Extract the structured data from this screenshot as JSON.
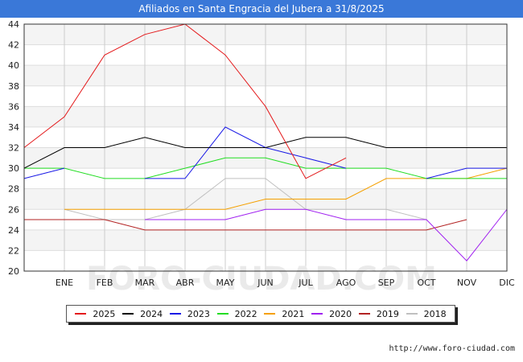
{
  "header": {
    "title": "Afiliados en Santa Engracia del Jubera a 31/8/2025"
  },
  "footer": {
    "source": "http://www.foro-ciudad.com"
  },
  "chart_data": {
    "type": "line",
    "title": "Afiliados en Santa Engracia del Jubera a 31/8/2025",
    "categories": [
      "",
      "ENE",
      "FEB",
      "MAR",
      "ABR",
      "MAY",
      "JUN",
      "JUL",
      "AGO",
      "SEP",
      "OCT",
      "NOV",
      "DIC"
    ],
    "ylim": [
      20,
      44
    ],
    "yticks": [
      20,
      22,
      24,
      26,
      28,
      30,
      32,
      34,
      36,
      38,
      40,
      42,
      44
    ],
    "grid": true,
    "legend_position": "bottom",
    "series": [
      {
        "name": "2025",
        "color": "#e41a1c",
        "values": [
          32,
          35,
          41,
          43,
          44,
          41,
          36,
          29,
          31,
          null,
          null,
          null,
          null
        ]
      },
      {
        "name": "2024",
        "color": "#000000",
        "values": [
          30,
          32,
          32,
          33,
          32,
          32,
          32,
          33,
          33,
          32,
          32,
          32,
          32
        ]
      },
      {
        "name": "2023",
        "color": "#1a1ae6",
        "values": [
          29,
          30,
          null,
          29,
          29,
          34,
          32,
          31,
          30,
          null,
          29,
          30,
          30
        ]
      },
      {
        "name": "2022",
        "color": "#22dd22",
        "values": [
          30,
          30,
          29,
          29,
          30,
          31,
          31,
          30,
          30,
          30,
          29,
          29,
          29
        ]
      },
      {
        "name": "2021",
        "color": "#f5a000",
        "values": [
          null,
          26,
          26,
          26,
          26,
          26,
          27,
          27,
          27,
          29,
          29,
          29,
          30
        ]
      },
      {
        "name": "2020",
        "color": "#a020f0",
        "values": [
          null,
          null,
          null,
          25,
          25,
          25,
          26,
          26,
          25,
          25,
          25,
          21,
          26
        ]
      },
      {
        "name": "2019",
        "color": "#b22222",
        "values": [
          25,
          25,
          25,
          24,
          24,
          24,
          24,
          24,
          24,
          24,
          24,
          25,
          null
        ]
      },
      {
        "name": "2018",
        "color": "#c0c0c0",
        "values": [
          null,
          26,
          25,
          25,
          26,
          29,
          29,
          26,
          26,
          26,
          25,
          null,
          null
        ]
      }
    ]
  }
}
